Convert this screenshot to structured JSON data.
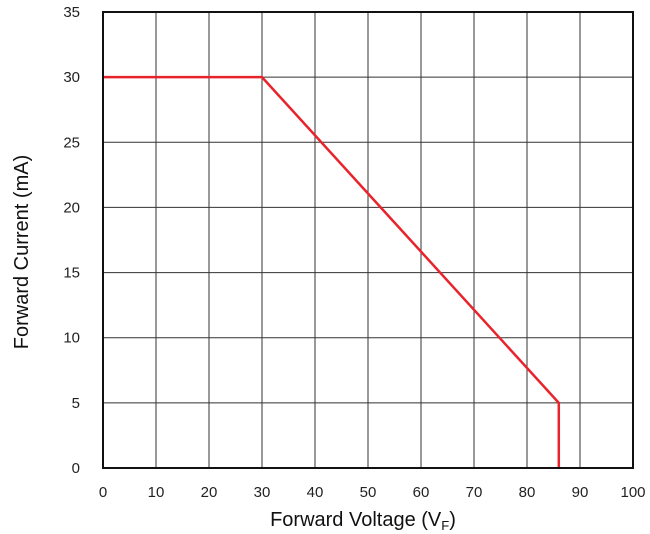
{
  "chart_data": {
    "type": "line",
    "title": "",
    "xlabel": {
      "main": "Forward Voltage (V",
      "sub": "F",
      "close": ")"
    },
    "ylabel": "Forward Current (mA)",
    "xlim": [
      0,
      100
    ],
    "ylim": [
      0,
      35
    ],
    "x_ticks": [
      0,
      10,
      20,
      30,
      40,
      50,
      60,
      70,
      80,
      90,
      100
    ],
    "y_ticks": [
      0,
      5,
      10,
      15,
      20,
      25,
      30,
      35
    ],
    "grid": true,
    "series": [
      {
        "color": "#e8232b",
        "points": [
          [
            0,
            30
          ],
          [
            30,
            30
          ],
          [
            86,
            5
          ],
          [
            86,
            0
          ]
        ]
      }
    ]
  }
}
